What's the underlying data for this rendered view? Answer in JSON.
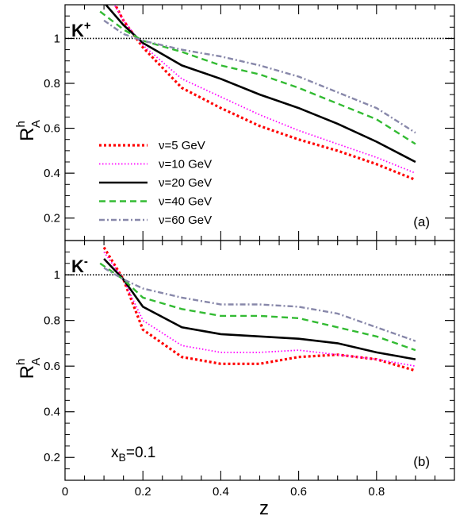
{
  "chart_data": {
    "type": "line",
    "xlabel": "z",
    "xlim": [
      0,
      1
    ],
    "x_ticks": [
      "0",
      "0.2",
      "0.4",
      "0.6",
      "0.8"
    ],
    "y_ticks": [
      "0.2",
      "0.4",
      "0.6",
      "0.8",
      "1"
    ],
    "reference_line": {
      "y": 1,
      "style": "dotted"
    },
    "legend": {
      "placement": "lower-left of panel (a)",
      "entries": [
        {
          "name": "ν=5 GeV",
          "color": "#ff0000",
          "style": "dotted-bold"
        },
        {
          "name": "ν=10 GeV",
          "color": "#ff00ff",
          "style": "dotted"
        },
        {
          "name": "ν=20 GeV",
          "color": "#000000",
          "style": "solid"
        },
        {
          "name": "ν=40 GeV",
          "color": "#33bb33",
          "style": "dashed"
        },
        {
          "name": "ν=60 GeV",
          "color": "#8888aa",
          "style": "dash-dot"
        }
      ]
    },
    "panels": [
      {
        "label": "(a)",
        "particle": {
          "base": "K",
          "sup": "+"
        },
        "ylabel": {
          "base": "R",
          "sup": "h",
          "sub": "A"
        },
        "ylim": [
          0.1,
          1.15
        ],
        "series": [
          {
            "name": "ν=5 GeV",
            "points": [
              [
                0.12,
                1.18
              ],
              [
                0.15,
                1.08
              ],
              [
                0.2,
                0.96
              ],
              [
                0.3,
                0.78
              ],
              [
                0.4,
                0.69
              ],
              [
                0.5,
                0.61
              ],
              [
                0.6,
                0.55
              ],
              [
                0.7,
                0.5
              ],
              [
                0.8,
                0.44
              ],
              [
                0.9,
                0.37
              ]
            ]
          },
          {
            "name": "ν=10 GeV",
            "points": [
              [
                0.12,
                1.17
              ],
              [
                0.15,
                1.08
              ],
              [
                0.2,
                0.97
              ],
              [
                0.3,
                0.82
              ],
              [
                0.4,
                0.74
              ],
              [
                0.5,
                0.66
              ],
              [
                0.6,
                0.59
              ],
              [
                0.7,
                0.53
              ],
              [
                0.8,
                0.47
              ],
              [
                0.9,
                0.4
              ]
            ]
          },
          {
            "name": "ν=20 GeV",
            "points": [
              [
                0.1,
                1.16
              ],
              [
                0.15,
                1.06
              ],
              [
                0.2,
                0.98
              ],
              [
                0.3,
                0.88
              ],
              [
                0.4,
                0.82
              ],
              [
                0.5,
                0.75
              ],
              [
                0.6,
                0.69
              ],
              [
                0.7,
                0.62
              ],
              [
                0.8,
                0.54
              ],
              [
                0.9,
                0.45
              ]
            ]
          },
          {
            "name": "ν=40 GeV",
            "points": [
              [
                0.09,
                1.12
              ],
              [
                0.15,
                1.04
              ],
              [
                0.2,
                0.99
              ],
              [
                0.3,
                0.94
              ],
              [
                0.4,
                0.88
              ],
              [
                0.5,
                0.84
              ],
              [
                0.6,
                0.78
              ],
              [
                0.7,
                0.71
              ],
              [
                0.8,
                0.64
              ],
              [
                0.9,
                0.53
              ]
            ]
          },
          {
            "name": "ν=60 GeV",
            "points": [
              [
                0.1,
                1.08
              ],
              [
                0.15,
                1.02
              ],
              [
                0.2,
                0.99
              ],
              [
                0.3,
                0.95
              ],
              [
                0.4,
                0.92
              ],
              [
                0.5,
                0.88
              ],
              [
                0.6,
                0.83
              ],
              [
                0.7,
                0.76
              ],
              [
                0.8,
                0.69
              ],
              [
                0.9,
                0.58
              ]
            ]
          }
        ]
      },
      {
        "label": "(b)",
        "particle": {
          "base": "K",
          "sup": "-"
        },
        "ylabel": {
          "base": "R",
          "sup": "h",
          "sub": "A"
        },
        "ylim": [
          0.1,
          1.15
        ],
        "annotation": {
          "base": "x",
          "sub": "B",
          "rest": "=0.1"
        },
        "series": [
          {
            "name": "ν=5 GeV",
            "points": [
              [
                0.1,
                1.12
              ],
              [
                0.15,
                0.98
              ],
              [
                0.2,
                0.76
              ],
              [
                0.3,
                0.64
              ],
              [
                0.4,
                0.61
              ],
              [
                0.5,
                0.61
              ],
              [
                0.6,
                0.64
              ],
              [
                0.7,
                0.65
              ],
              [
                0.8,
                0.63
              ],
              [
                0.9,
                0.58
              ]
            ]
          },
          {
            "name": "ν=10 GeV",
            "points": [
              [
                0.1,
                1.1
              ],
              [
                0.15,
                0.98
              ],
              [
                0.2,
                0.8
              ],
              [
                0.3,
                0.69
              ],
              [
                0.4,
                0.66
              ],
              [
                0.5,
                0.66
              ],
              [
                0.6,
                0.67
              ],
              [
                0.7,
                0.65
              ],
              [
                0.8,
                0.63
              ],
              [
                0.9,
                0.6
              ]
            ]
          },
          {
            "name": "ν=20 GeV",
            "points": [
              [
                0.1,
                1.07
              ],
              [
                0.15,
                0.98
              ],
              [
                0.2,
                0.86
              ],
              [
                0.3,
                0.77
              ],
              [
                0.4,
                0.74
              ],
              [
                0.5,
                0.73
              ],
              [
                0.6,
                0.72
              ],
              [
                0.7,
                0.7
              ],
              [
                0.8,
                0.66
              ],
              [
                0.9,
                0.63
              ]
            ]
          },
          {
            "name": "ν=40 GeV",
            "points": [
              [
                0.09,
                1.05
              ],
              [
                0.15,
                0.98
              ],
              [
                0.2,
                0.9
              ],
              [
                0.3,
                0.85
              ],
              [
                0.4,
                0.82
              ],
              [
                0.5,
                0.82
              ],
              [
                0.6,
                0.81
              ],
              [
                0.7,
                0.77
              ],
              [
                0.8,
                0.73
              ],
              [
                0.9,
                0.67
              ]
            ]
          },
          {
            "name": "ν=60 GeV",
            "points": [
              [
                0.1,
                1.03
              ],
              [
                0.15,
                0.98
              ],
              [
                0.2,
                0.94
              ],
              [
                0.3,
                0.9
              ],
              [
                0.4,
                0.87
              ],
              [
                0.5,
                0.87
              ],
              [
                0.6,
                0.86
              ],
              [
                0.7,
                0.83
              ],
              [
                0.8,
                0.77
              ],
              [
                0.9,
                0.71
              ]
            ]
          }
        ]
      }
    ]
  }
}
